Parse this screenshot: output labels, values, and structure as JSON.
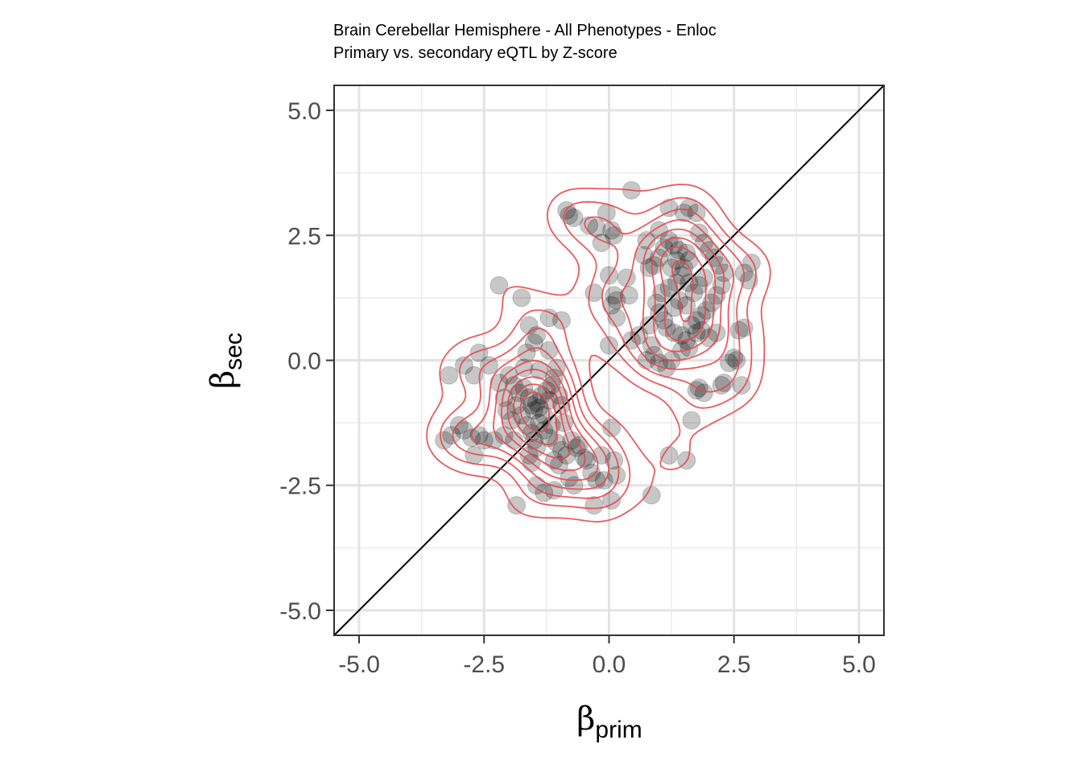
{
  "chart_data": {
    "type": "scatter",
    "title": "Brain Cerebellar Hemisphere - All Phenotypes - Enloc",
    "subtitle": "Primary vs. secondary eQTL by Z-score",
    "xlabel": {
      "symbol": "β",
      "subscript": "prim"
    },
    "ylabel": {
      "symbol": "β",
      "subscript": "sec"
    },
    "xlim": [
      -5.5,
      5.5
    ],
    "ylim": [
      -5.5,
      5.5
    ],
    "x_ticks": [
      -5.0,
      -2.5,
      0.0,
      2.5,
      5.0
    ],
    "y_ticks": [
      -5.0,
      -2.5,
      0.0,
      2.5,
      5.0
    ],
    "x_tick_labels": [
      "-5.0",
      "-2.5",
      "0.0",
      "2.5",
      "5.0"
    ],
    "y_tick_labels": [
      "-5.0",
      "-2.5",
      "0.0",
      "2.5",
      "5.0"
    ],
    "grid": true,
    "identity_line": true,
    "point_color": "#000000",
    "point_opacity": 0.22,
    "density_contour_color": "#e8484e",
    "points": [
      [
        -2.2,
        1.5
      ],
      [
        -1.75,
        1.25
      ],
      [
        -1.2,
        0.85
      ],
      [
        -0.95,
        0.8
      ],
      [
        -1.6,
        0.7
      ],
      [
        -1.45,
        0.5
      ],
      [
        -1.5,
        0.35
      ],
      [
        -1.2,
        0.2
      ],
      [
        -1.65,
        0.15
      ],
      [
        -2.6,
        0.15
      ],
      [
        -2.9,
        -0.1
      ],
      [
        -3.2,
        -0.3
      ],
      [
        -2.7,
        -0.3
      ],
      [
        -2.4,
        -0.1
      ],
      [
        -2.2,
        -0.45
      ],
      [
        -2.0,
        -0.3
      ],
      [
        -1.9,
        -0.5
      ],
      [
        -1.8,
        -0.65
      ],
      [
        -1.7,
        -0.55
      ],
      [
        -1.6,
        -0.75
      ],
      [
        -1.55,
        -0.9
      ],
      [
        -1.5,
        -1.0
      ],
      [
        -1.45,
        -0.85
      ],
      [
        -1.4,
        -0.95
      ],
      [
        -1.35,
        -0.7
      ],
      [
        -1.3,
        -1.1
      ],
      [
        -1.25,
        -0.6
      ],
      [
        -1.2,
        -0.8
      ],
      [
        -1.15,
        -0.5
      ],
      [
        -1.1,
        -0.35
      ],
      [
        -1.0,
        -0.7
      ],
      [
        -0.95,
        -0.9
      ],
      [
        -0.9,
        -1.25
      ],
      [
        -1.05,
        -0.15
      ],
      [
        -1.4,
        -0.2
      ],
      [
        -1.7,
        -0.15
      ],
      [
        -2.1,
        -0.75
      ],
      [
        -2.05,
        -1.0
      ],
      [
        -1.95,
        -1.2
      ],
      [
        -1.85,
        -0.9
      ],
      [
        -1.75,
        -1.1
      ],
      [
        -1.65,
        -1.3
      ],
      [
        -1.55,
        -1.45
      ],
      [
        -1.5,
        -1.6
      ],
      [
        -1.45,
        -1.75
      ],
      [
        -1.4,
        -1.25
      ],
      [
        -1.3,
        -1.4
      ],
      [
        -1.2,
        -1.55
      ],
      [
        -1.15,
        -1.3
      ],
      [
        -1.05,
        -1.65
      ],
      [
        -0.95,
        -1.8
      ],
      [
        -0.85,
        -1.9
      ],
      [
        -0.75,
        -1.6
      ],
      [
        -0.6,
        -1.7
      ],
      [
        -0.5,
        -1.95
      ],
      [
        -0.45,
        -2.0
      ],
      [
        -0.35,
        -2.25
      ],
      [
        -0.25,
        -2.4
      ],
      [
        -0.1,
        -2.4
      ],
      [
        -0.15,
        -1.9
      ],
      [
        0.1,
        -2.0
      ],
      [
        0.15,
        -2.3
      ],
      [
        0.05,
        -1.35
      ],
      [
        -0.3,
        -2.9
      ],
      [
        0.05,
        -2.8
      ],
      [
        -0.8,
        -2.35
      ],
      [
        -0.7,
        -2.5
      ],
      [
        -1.1,
        -2.6
      ],
      [
        -1.3,
        -2.65
      ],
      [
        -1.45,
        -2.5
      ],
      [
        -1.85,
        -2.9
      ],
      [
        -2.5,
        -1.6
      ],
      [
        -2.6,
        -1.5
      ],
      [
        -2.75,
        -1.55
      ],
      [
        -2.9,
        -1.4
      ],
      [
        -3.0,
        -1.3
      ],
      [
        -3.3,
        -1.6
      ],
      [
        -3.15,
        -1.5
      ],
      [
        -2.7,
        -1.9
      ],
      [
        -2.3,
        -1.6
      ],
      [
        -2.1,
        -1.5
      ],
      [
        -1.9,
        -1.6
      ],
      [
        -1.6,
        -1.9
      ],
      [
        -1.55,
        -2.05
      ],
      [
        -1.1,
        -2.0
      ],
      [
        -1.0,
        -2.1
      ],
      [
        -0.65,
        -1.75
      ],
      [
        0.85,
        -2.7
      ],
      [
        1.2,
        -1.9
      ],
      [
        1.55,
        -2.0
      ],
      [
        1.65,
        -1.2
      ],
      [
        -0.85,
        3.0
      ],
      [
        -0.8,
        2.9
      ],
      [
        -0.7,
        2.85
      ],
      [
        -0.4,
        2.7
      ],
      [
        -0.25,
        2.65
      ],
      [
        -0.05,
        2.95
      ],
      [
        0.05,
        2.6
      ],
      [
        0.1,
        2.5
      ],
      [
        0.45,
        3.4
      ],
      [
        -0.15,
        2.35
      ],
      [
        0.0,
        1.7
      ],
      [
        0.35,
        1.65
      ],
      [
        0.1,
        1.3
      ],
      [
        0.15,
        1.2
      ],
      [
        0.05,
        1.1
      ],
      [
        -0.3,
        1.35
      ],
      [
        0.15,
        0.85
      ],
      [
        0.0,
        0.3
      ],
      [
        0.45,
        0.4
      ],
      [
        0.85,
        0.3
      ],
      [
        0.9,
        0.1
      ],
      [
        0.75,
        0.0
      ],
      [
        1.0,
        -0.05
      ],
      [
        1.15,
        -0.15
      ],
      [
        1.25,
        0.0
      ],
      [
        1.45,
        0.2
      ],
      [
        1.6,
        0.25
      ],
      [
        1.55,
        0.4
      ],
      [
        1.45,
        0.5
      ],
      [
        1.3,
        0.55
      ],
      [
        1.15,
        0.65
      ],
      [
        1.1,
        0.8
      ],
      [
        1.0,
        0.95
      ],
      [
        0.95,
        1.15
      ],
      [
        1.05,
        1.35
      ],
      [
        1.2,
        1.45
      ],
      [
        1.35,
        1.55
      ],
      [
        1.45,
        1.7
      ],
      [
        1.5,
        1.85
      ],
      [
        1.6,
        2.0
      ],
      [
        1.55,
        2.15
      ],
      [
        1.4,
        2.2
      ],
      [
        1.3,
        2.3
      ],
      [
        1.2,
        2.4
      ],
      [
        1.1,
        2.25
      ],
      [
        1.0,
        2.05
      ],
      [
        0.9,
        1.9
      ],
      [
        0.8,
        1.85
      ],
      [
        0.7,
        2.1
      ],
      [
        0.75,
        2.4
      ],
      [
        1.0,
        2.6
      ],
      [
        1.2,
        3.05
      ],
      [
        1.5,
        2.95
      ],
      [
        1.6,
        3.05
      ],
      [
        1.75,
        2.95
      ],
      [
        1.8,
        2.55
      ],
      [
        1.9,
        2.35
      ],
      [
        2.0,
        2.2
      ],
      [
        2.1,
        2.05
      ],
      [
        2.2,
        1.9
      ],
      [
        2.3,
        1.75
      ],
      [
        2.25,
        1.5
      ],
      [
        2.15,
        1.3
      ],
      [
        2.05,
        1.15
      ],
      [
        1.95,
        1.0
      ],
      [
        1.85,
        0.9
      ],
      [
        1.75,
        0.8
      ],
      [
        1.65,
        0.7
      ],
      [
        1.75,
        0.55
      ],
      [
        1.85,
        0.6
      ],
      [
        2.0,
        0.45
      ],
      [
        2.15,
        0.55
      ],
      [
        2.6,
        0.6
      ],
      [
        2.7,
        0.65
      ],
      [
        2.5,
        0.05
      ],
      [
        2.55,
        0.0
      ],
      [
        2.4,
        -0.05
      ],
      [
        2.3,
        -0.45
      ],
      [
        2.25,
        -0.5
      ],
      [
        2.65,
        -0.5
      ],
      [
        1.8,
        -0.55
      ],
      [
        1.9,
        -0.65
      ],
      [
        1.75,
        -0.6
      ],
      [
        2.8,
        1.6
      ],
      [
        2.85,
        1.95
      ],
      [
        2.7,
        1.75
      ],
      [
        0.4,
        1.3
      ],
      [
        0.8,
        0.7
      ],
      [
        0.6,
        0.5
      ],
      [
        1.3,
        1.05
      ],
      [
        1.4,
        1.2
      ],
      [
        1.55,
        1.1
      ],
      [
        1.7,
        1.35
      ],
      [
        1.8,
        1.5
      ],
      [
        1.9,
        1.65
      ],
      [
        1.25,
        1.85
      ],
      [
        1.35,
        2.0
      ],
      [
        1.6,
        1.55
      ]
    ]
  }
}
